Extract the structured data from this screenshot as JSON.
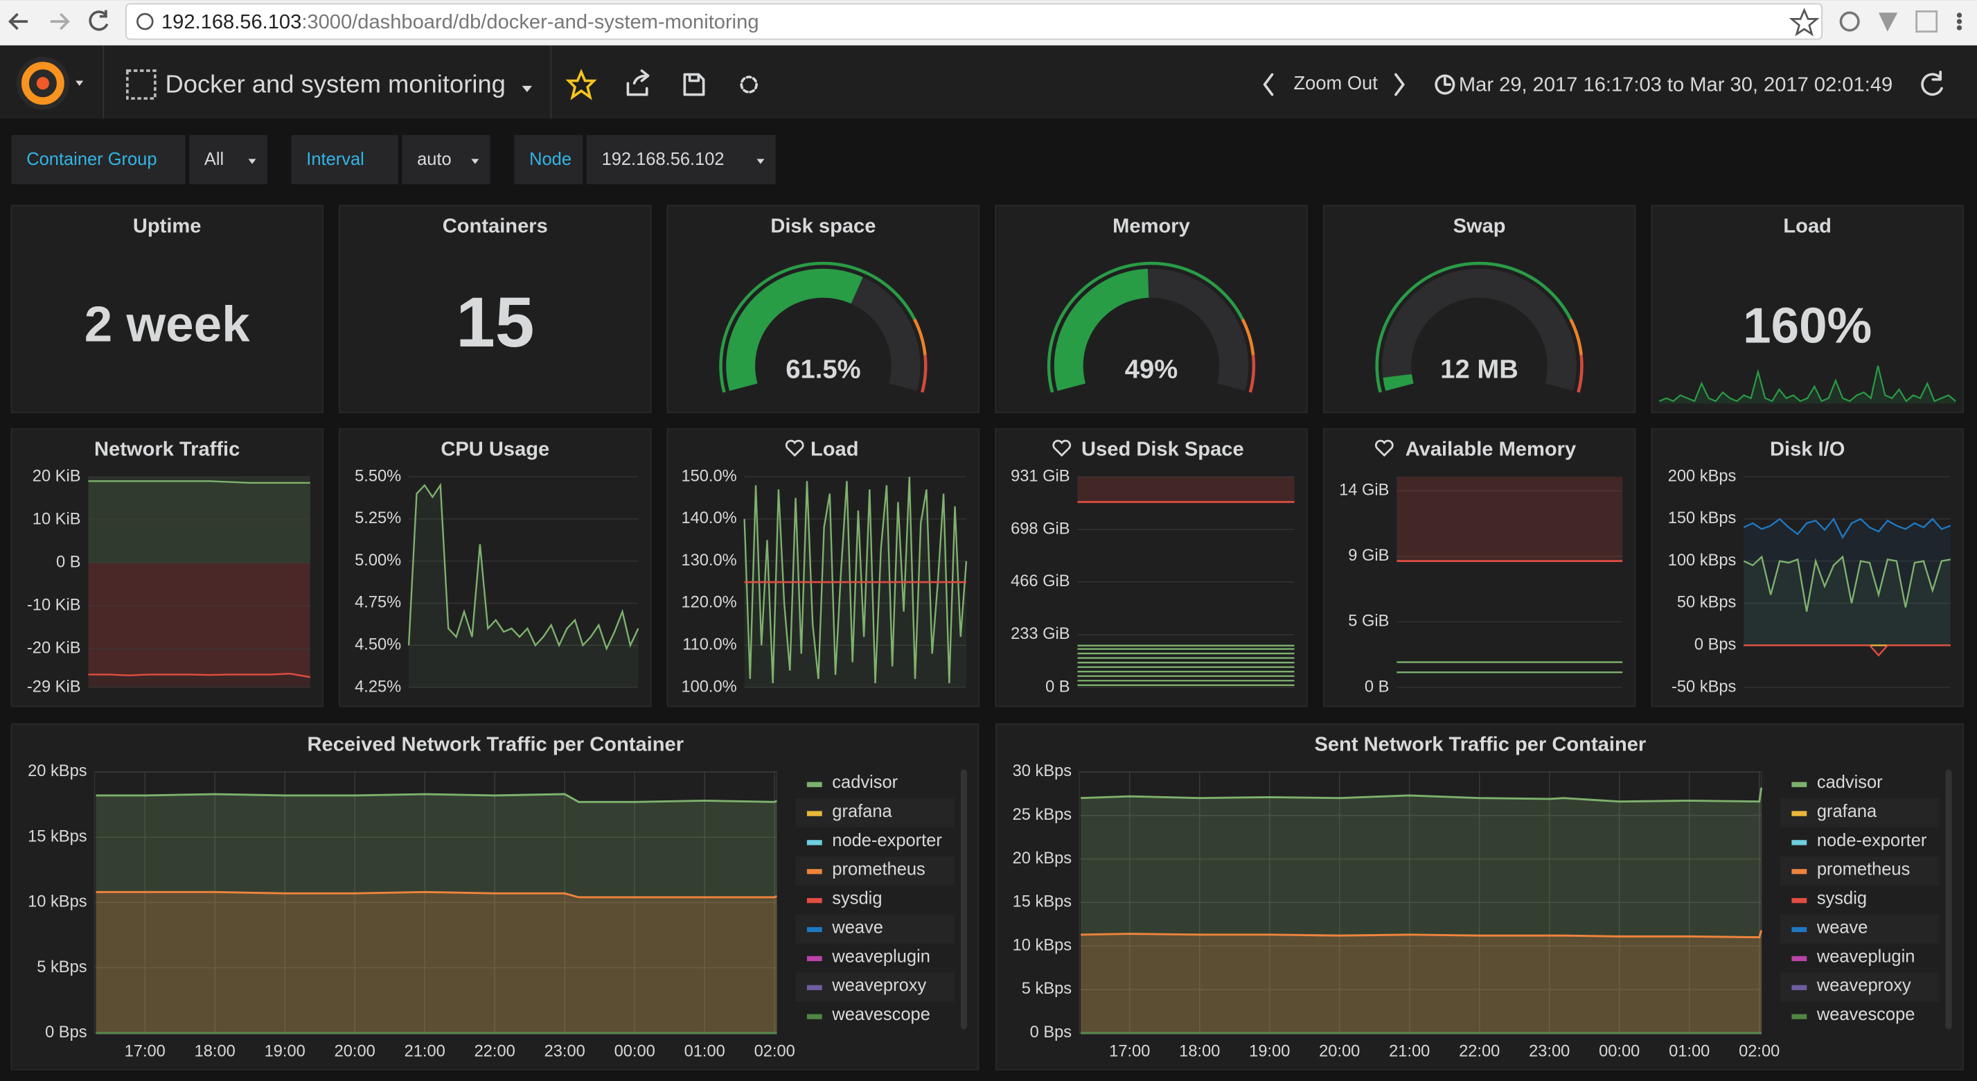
{
  "browser": {
    "url_host": "192.168.56.103",
    "url_path": ":3000/dashboard/db/docker-and-system-monitoring"
  },
  "header": {
    "title": "Docker and system monitoring",
    "zoom": "Zoom Out",
    "time_range": "Mar 29, 2017 16:17:03 to Mar 30, 2017 02:01:49"
  },
  "variables": [
    {
      "label": "Container Group",
      "value": "All"
    },
    {
      "label": "Interval",
      "value": "auto"
    },
    {
      "label": "Node",
      "value": "192.168.56.102"
    }
  ],
  "singlestats": [
    {
      "kind": "text",
      "title": "Uptime",
      "value": "2 week"
    },
    {
      "kind": "text",
      "title": "Containers",
      "value": 15
    },
    {
      "kind": "gauge",
      "title": "Disk space",
      "value": 61.5,
      "value_label": "61.5%"
    },
    {
      "kind": "gauge",
      "title": "Memory",
      "value": 49,
      "value_label": "49%"
    },
    {
      "kind": "gauge",
      "title": "Swap",
      "value_label": "12 MB"
    },
    {
      "kind": "spark",
      "title": "Load",
      "value": 160,
      "value_label": "160%",
      "sparkline": [
        2,
        3,
        2,
        4,
        3,
        2,
        8,
        3,
        2,
        5,
        3,
        2,
        4,
        3,
        12,
        3,
        2,
        6,
        3,
        4,
        2,
        3,
        7,
        2,
        3,
        9,
        3,
        2,
        4,
        5,
        3,
        14,
        4,
        3,
        6,
        2,
        4,
        3,
        8,
        2,
        3,
        4,
        2
      ]
    }
  ],
  "graphs": [
    {
      "title": "Network Traffic",
      "zero_shading": true,
      "ylim": [
        -29,
        20
      ],
      "yticks": [
        {
          "value": 20,
          "label": "20 KiB"
        },
        {
          "value": 10,
          "label": "10 KiB"
        },
        {
          "value": 0,
          "label": "0 B"
        },
        {
          "value": -10,
          "label": "-10 KiB"
        },
        {
          "value": -20,
          "label": "-20 KiB"
        },
        {
          "value": -29,
          "label": "-29 KiB"
        }
      ],
      "series": [
        {
          "color": "#7eb26d",
          "values": [
            19,
            19,
            19,
            19,
            19,
            19,
            19,
            18.8,
            18.6,
            18.6,
            18.6,
            18.6
          ]
        },
        {
          "color": "#e24d42",
          "values": [
            -26,
            -26,
            -26.2,
            -26,
            -26,
            -26,
            -26.1,
            -26,
            -26,
            -26,
            -25.8,
            -26.6
          ]
        }
      ]
    },
    {
      "title": "CPU Usage",
      "ylim": [
        4.25,
        5.5
      ],
      "yticks": [
        {
          "value": 5.5,
          "label": "5.50%"
        },
        {
          "value": 5.25,
          "label": "5.25%"
        },
        {
          "value": 5,
          "label": "5.00%"
        },
        {
          "value": 4.75,
          "label": "4.75%"
        },
        {
          "value": 4.5,
          "label": "4.50%"
        },
        {
          "value": 4.25,
          "label": "4.25%"
        }
      ],
      "series": [
        {
          "color": "#7eb26d",
          "values": [
            4.5,
            5.4,
            5.45,
            5.38,
            5.45,
            4.6,
            4.55,
            4.7,
            4.55,
            5.1,
            4.6,
            4.65,
            4.58,
            4.6,
            4.55,
            4.6,
            4.5,
            4.55,
            4.62,
            4.5,
            4.6,
            4.65,
            4.5,
            4.55,
            4.62,
            4.48,
            4.58,
            4.7,
            4.5,
            4.6
          ]
        }
      ]
    },
    {
      "title": "Load",
      "alert": true,
      "threshold": 125,
      "ylim": [
        100,
        150
      ],
      "yticks": [
        {
          "value": 150,
          "label": "150.0%"
        },
        {
          "value": 140,
          "label": "140.0%"
        },
        {
          "value": 130,
          "label": "130.0%"
        },
        {
          "value": 120,
          "label": "120.0%"
        },
        {
          "value": 110,
          "label": "110.0%"
        },
        {
          "value": 100,
          "label": "100.0%"
        }
      ],
      "series": [
        {
          "color": "#7eb26d",
          "values": [
            140,
            102,
            148,
            110,
            135,
            101,
            147,
            120,
            104,
            145,
            108,
            149,
            115,
            102,
            138,
            146,
            103,
            128,
            149,
            106,
            142,
            112,
            147,
            101,
            133,
            148,
            105,
            144,
            118,
            150,
            102,
            139,
            147,
            108,
            125,
            146,
            101,
            143,
            112,
            130
          ]
        }
      ]
    },
    {
      "title": "Used Disk Space",
      "alert": true,
      "threshold": 820,
      "threshold_fill": true,
      "ylim": [
        0,
        931
      ],
      "yticks": [
        {
          "value": 931,
          "label": "931 GiB"
        },
        {
          "value": 698,
          "label": "698 GiB"
        },
        {
          "value": 466,
          "label": "466 GiB"
        },
        {
          "value": 233,
          "label": "233 GiB"
        },
        {
          "value": 0,
          "label": "0 B"
        }
      ],
      "level_color": "#7eb26d",
      "levels": [
        10,
        30,
        50,
        70,
        90,
        110,
        130,
        150,
        170,
        185
      ]
    },
    {
      "title": "Available Memory",
      "alert": true,
      "threshold": 9,
      "threshold_fill": true,
      "ylim": [
        0,
        15
      ],
      "yticks": [
        {
          "value": 14,
          "label": "14 GiB"
        },
        {
          "value": 9.33,
          "label": "9 GiB"
        },
        {
          "value": 4.67,
          "label": "5 GiB"
        },
        {
          "value": 0,
          "label": "0 B"
        }
      ],
      "level_color": "#7eb26d",
      "levels": [
        1.8,
        1.08
      ]
    },
    {
      "title": "Disk I/O",
      "ylim": [
        -50,
        200
      ],
      "yticks": [
        {
          "value": 200,
          "label": "200 kBps"
        },
        {
          "value": 150,
          "label": "150 kBps"
        },
        {
          "value": 100,
          "label": "100 kBps"
        },
        {
          "value": 50,
          "label": "50 kBps"
        },
        {
          "value": 0,
          "label": "0 Bps"
        },
        {
          "value": -50,
          "label": "-50 kBps"
        }
      ],
      "series": [
        {
          "color": "#1f78c1",
          "values": [
            140,
            145,
            138,
            142,
            150,
            140,
            132,
            145,
            148,
            137,
            150,
            128,
            145,
            150,
            140,
            135,
            148,
            142,
            138,
            145,
            140,
            150,
            138,
            142
          ]
        },
        {
          "color": "#7eb26d",
          "values": [
            100,
            95,
            105,
            60,
            100,
            98,
            102,
            40,
            100,
            70,
            95,
            105,
            50,
            100,
            98,
            60,
            102,
            100,
            45,
            98,
            100,
            65,
            100,
            102
          ]
        },
        {
          "color": "#eab839",
          "values": [
            0,
            0,
            0,
            0,
            0,
            0,
            0,
            0,
            0,
            0,
            0,
            0,
            0,
            0,
            0,
            0,
            0,
            0,
            0,
            0,
            0,
            0,
            0,
            0
          ]
        },
        {
          "color": "#e24d42",
          "values": [
            0,
            0,
            0,
            0,
            0,
            0,
            0,
            0,
            0,
            0,
            0,
            0,
            0,
            0,
            0,
            -12,
            0,
            0,
            0,
            0,
            0,
            0,
            0,
            0
          ]
        }
      ]
    }
  ],
  "timegraphs": [
    {
      "title": "Received Network Traffic per Container",
      "xlim": [
        16.28,
        26.03
      ],
      "ylim": [
        0,
        20
      ],
      "xticks": [
        {
          "value": 17,
          "label": "17:00"
        },
        {
          "value": 18,
          "label": "18:00"
        },
        {
          "value": 19,
          "label": "19:00"
        },
        {
          "value": 20,
          "label": "20:00"
        },
        {
          "value": 21,
          "label": "21:00"
        },
        {
          "value": 22,
          "label": "22:00"
        },
        {
          "value": 23,
          "label": "23:00"
        },
        {
          "value": 24,
          "label": "00:00"
        },
        {
          "value": 25,
          "label": "01:00"
        },
        {
          "value": 26,
          "label": "02:00"
        }
      ],
      "yticks": [
        {
          "value": 20,
          "label": "20 kBps"
        },
        {
          "value": 15,
          "label": "15 kBps"
        },
        {
          "value": 10,
          "label": "10 kBps"
        },
        {
          "value": 5,
          "label": "5 kBps"
        },
        {
          "value": 0,
          "label": "0 Bps"
        }
      ],
      "x": [
        16.3,
        17,
        18,
        19,
        20,
        21,
        22,
        23,
        23.2,
        24,
        25,
        26,
        26.03
      ],
      "series": [
        {
          "name": "cadvisor",
          "color": "#7eb26d",
          "values": [
            18.2,
            18.2,
            18.3,
            18.2,
            18.2,
            18.3,
            18.2,
            18.3,
            17.7,
            17.7,
            17.8,
            17.7,
            17.8
          ]
        },
        {
          "name": "grafana",
          "color": "#eab839",
          "values": [
            0,
            0,
            0,
            0,
            0,
            0,
            0,
            0,
            0,
            0,
            0,
            0,
            0
          ]
        },
        {
          "name": "node-exporter",
          "color": "#6ed0e0",
          "values": [
            0,
            0,
            0,
            0,
            0,
            0,
            0,
            0,
            0,
            0,
            0,
            0,
            0
          ]
        },
        {
          "name": "prometheus",
          "color": "#ef843c",
          "values": [
            10.8,
            10.8,
            10.8,
            10.7,
            10.7,
            10.8,
            10.7,
            10.7,
            10.4,
            10.4,
            10.4,
            10.4,
            10.5
          ]
        },
        {
          "name": "sysdig",
          "color": "#e24d42",
          "values": [
            0,
            0,
            0,
            0,
            0,
            0,
            0,
            0,
            0,
            0,
            0,
            0,
            0
          ]
        },
        {
          "name": "weave",
          "color": "#1f78c1",
          "values": [
            0,
            0,
            0,
            0,
            0,
            0,
            0,
            0,
            0,
            0,
            0,
            0,
            0
          ]
        },
        {
          "name": "weaveplugin",
          "color": "#ba43a9",
          "values": [
            0,
            0,
            0,
            0,
            0,
            0,
            0,
            0,
            0,
            0,
            0,
            0,
            0
          ]
        },
        {
          "name": "weaveproxy",
          "color": "#705da0",
          "values": [
            0,
            0,
            0,
            0,
            0,
            0,
            0,
            0,
            0,
            0,
            0,
            0,
            0
          ]
        },
        {
          "name": "weavescope",
          "color": "#508642",
          "values": [
            0,
            0,
            0,
            0,
            0,
            0,
            0,
            0,
            0,
            0,
            0,
            0,
            0
          ]
        }
      ]
    },
    {
      "title": "Sent Network Traffic per Container",
      "xlim": [
        16.28,
        26.03
      ],
      "ylim": [
        0,
        30
      ],
      "xticks": [
        {
          "value": 17,
          "label": "17:00"
        },
        {
          "value": 18,
          "label": "18:00"
        },
        {
          "value": 19,
          "label": "19:00"
        },
        {
          "value": 20,
          "label": "20:00"
        },
        {
          "value": 21,
          "label": "21:00"
        },
        {
          "value": 22,
          "label": "22:00"
        },
        {
          "value": 23,
          "label": "23:00"
        },
        {
          "value": 24,
          "label": "00:00"
        },
        {
          "value": 25,
          "label": "01:00"
        },
        {
          "value": 26,
          "label": "02:00"
        }
      ],
      "yticks": [
        {
          "value": 30,
          "label": "30 kBps"
        },
        {
          "value": 25,
          "label": "25 kBps"
        },
        {
          "value": 20,
          "label": "20 kBps"
        },
        {
          "value": 15,
          "label": "15 kBps"
        },
        {
          "value": 10,
          "label": "10 kBps"
        },
        {
          "value": 5,
          "label": "5 kBps"
        },
        {
          "value": 0,
          "label": "0 Bps"
        }
      ],
      "x": [
        16.3,
        17,
        18,
        19,
        20,
        21,
        22,
        23,
        23.2,
        24,
        25,
        26,
        26.03
      ],
      "series": [
        {
          "name": "cadvisor",
          "color": "#7eb26d",
          "values": [
            27,
            27.2,
            27,
            27.1,
            27,
            27.3,
            27,
            26.9,
            27,
            26.6,
            26.7,
            26.6,
            28.2
          ]
        },
        {
          "name": "grafana",
          "color": "#eab839",
          "values": [
            0,
            0,
            0,
            0,
            0,
            0,
            0,
            0,
            0,
            0,
            0,
            0,
            0
          ]
        },
        {
          "name": "node-exporter",
          "color": "#6ed0e0",
          "values": [
            0,
            0,
            0,
            0,
            0,
            0,
            0,
            0,
            0,
            0,
            0,
            0,
            0
          ]
        },
        {
          "name": "prometheus",
          "color": "#ef843c",
          "values": [
            11.3,
            11.4,
            11.3,
            11.3,
            11.2,
            11.3,
            11.2,
            11.2,
            11.2,
            11.1,
            11.1,
            11.0,
            11.8
          ]
        },
        {
          "name": "sysdig",
          "color": "#e24d42",
          "values": [
            0,
            0,
            0,
            0,
            0,
            0,
            0,
            0,
            0,
            0,
            0,
            0,
            0
          ]
        },
        {
          "name": "weave",
          "color": "#1f78c1",
          "values": [
            0,
            0,
            0,
            0,
            0,
            0,
            0,
            0,
            0,
            0,
            0,
            0,
            0
          ]
        },
        {
          "name": "weaveplugin",
          "color": "#ba43a9",
          "values": [
            0,
            0,
            0,
            0,
            0,
            0,
            0,
            0,
            0,
            0,
            0,
            0,
            0
          ]
        },
        {
          "name": "weaveproxy",
          "color": "#705da0",
          "values": [
            0,
            0,
            0,
            0,
            0,
            0,
            0,
            0,
            0,
            0,
            0,
            0,
            0
          ]
        },
        {
          "name": "weavescope",
          "color": "#508642",
          "values": [
            0,
            0,
            0,
            0,
            0,
            0,
            0,
            0,
            0,
            0,
            0,
            0,
            0
          ]
        }
      ]
    }
  ]
}
